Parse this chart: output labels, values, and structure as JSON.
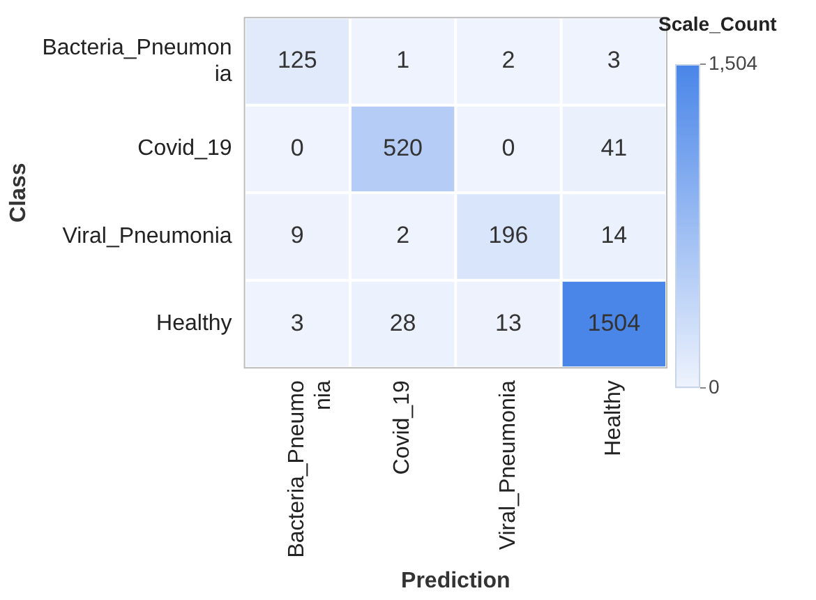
{
  "chart_data": {
    "type": "heatmap",
    "xlabel": "Prediction",
    "ylabel": "Class",
    "clabel": "Scale_Count",
    "categories": [
      "Bacteria_Pneumonia",
      "Covid_19",
      "Viral_Pneumonia",
      "Healthy"
    ],
    "y_categories": [
      "Bacteria_Pneumonia",
      "Covid_19",
      "Viral_Pneumonia",
      "Healthy"
    ],
    "cells": [
      [
        125,
        1,
        2,
        3
      ],
      [
        0,
        520,
        0,
        41
      ],
      [
        9,
        2,
        196,
        14
      ],
      [
        3,
        28,
        13,
        1504
      ]
    ],
    "clim": [
      0,
      1504
    ],
    "cticks": [
      0,
      {
        "value": 1504,
        "label": "1,504"
      }
    ],
    "colors": [
      "#eef3fd",
      "#4a86e8"
    ],
    "data_labels": true
  }
}
